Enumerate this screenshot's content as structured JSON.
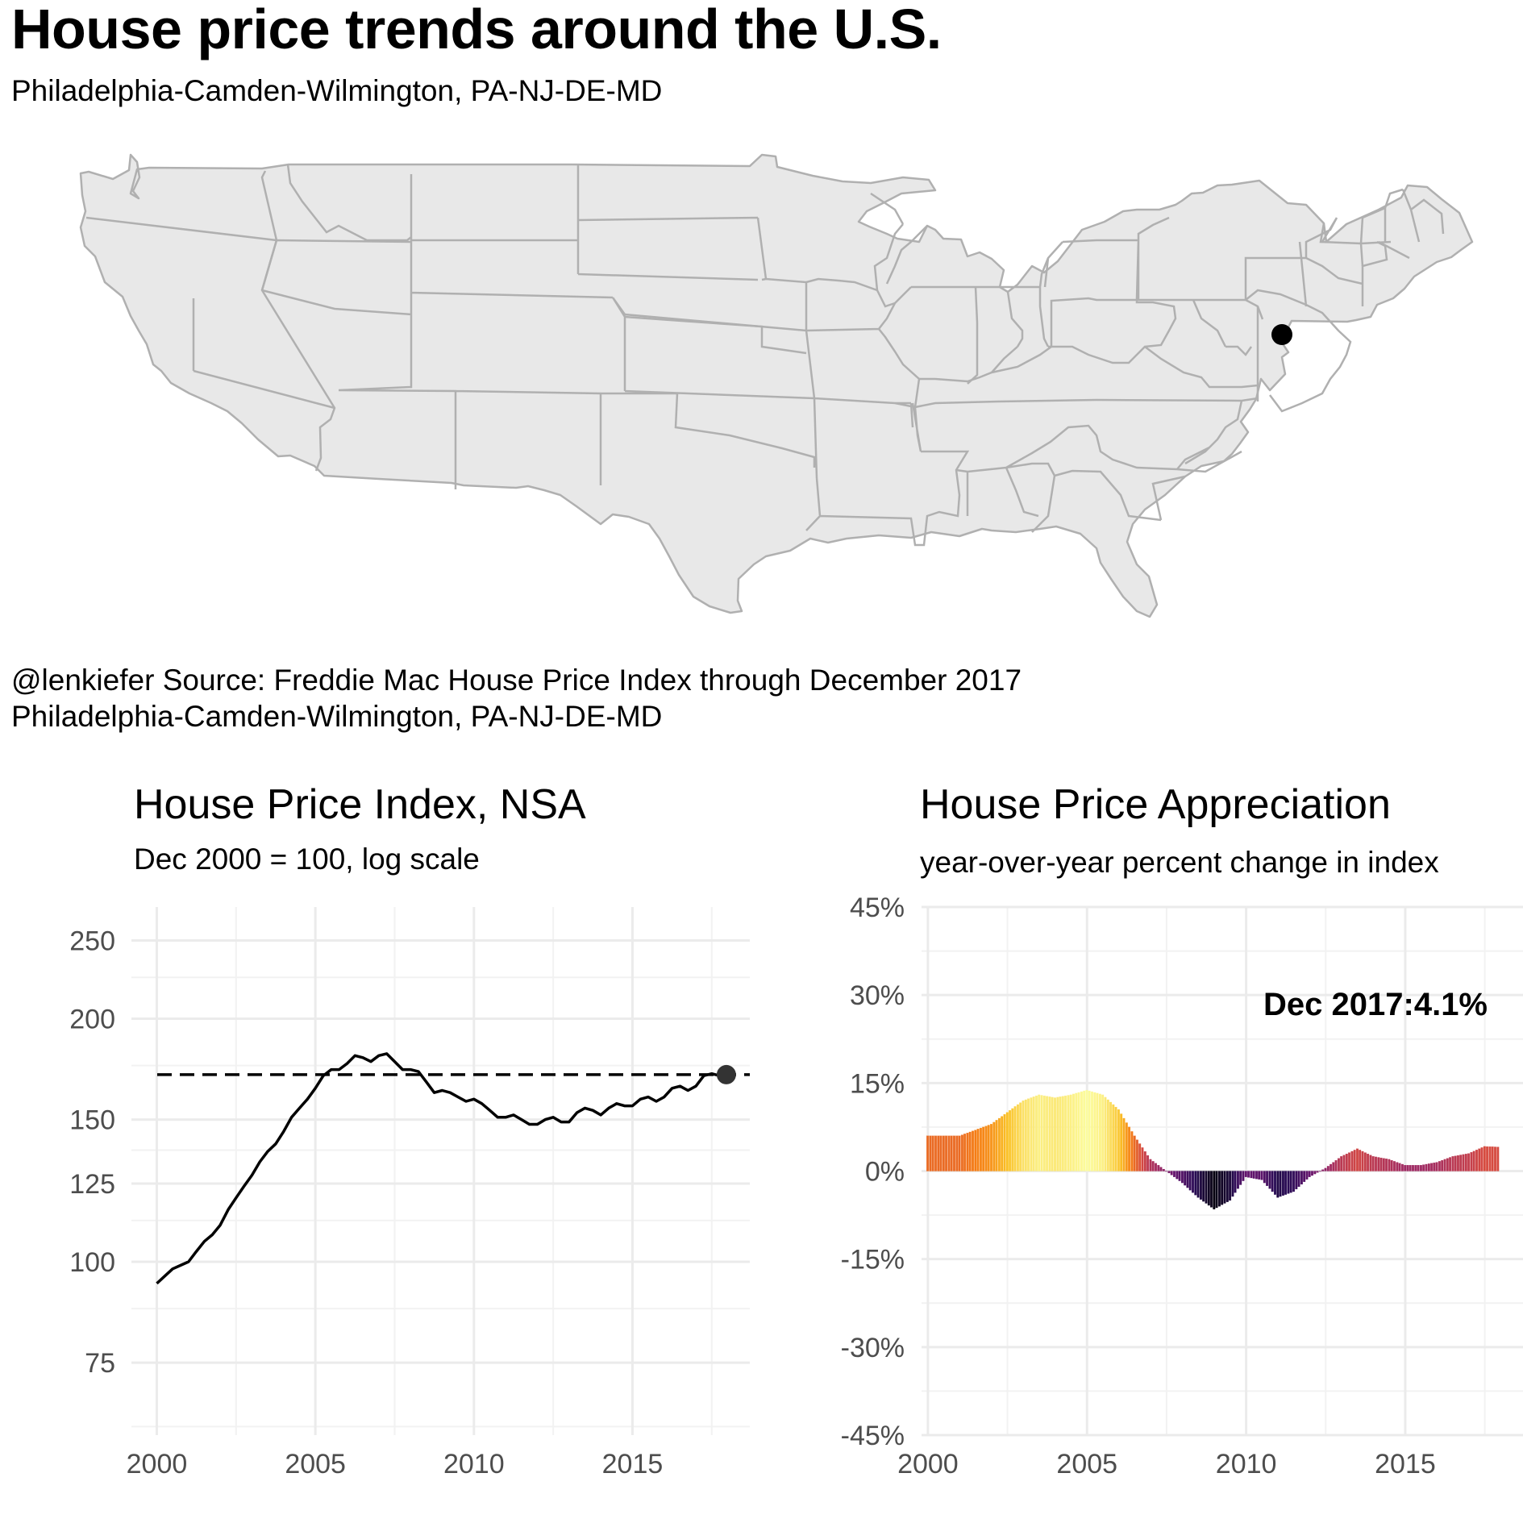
{
  "header": {
    "title": "House price trends around the U.S.",
    "subtitle": "Philadelphia-Camden-Wilmington, PA-NJ-DE-MD"
  },
  "map": {
    "marker_label": "Philadelphia-Camden-Wilmington, PA-NJ-DE-MD",
    "marker_lon": -75.2,
    "marker_lat": 39.95,
    "fill": "#e8e8e8",
    "stroke": "#b0b0b0",
    "marker_color": "#000000"
  },
  "caption": {
    "line1": "@lenkiefer Source: Freddie Mac House Price Index through December 2017",
    "line2": "Philadelphia-Camden-Wilmington, PA-NJ-DE-MD"
  },
  "chart_data": [
    {
      "type": "line",
      "title": "House Price Index, NSA",
      "subtitle": "Dec 2000 = 100, log scale",
      "scale": "log",
      "ylim": [
        61,
        275
      ],
      "xlim": [
        1999.2,
        2018.7
      ],
      "y_ticks": [
        75,
        100,
        125,
        150,
        200,
        250
      ],
      "y_minor": [
        62.5,
        87.5,
        112.5,
        137.5,
        175,
        225
      ],
      "x_ticks": [
        2000,
        2005,
        2010,
        2015
      ],
      "reference_value": 170.5,
      "end_point": {
        "x": 2017.96,
        "y": 170.5,
        "color": "#333333"
      },
      "series": [
        {
          "x": [
            2000.0,
            2000.25,
            2000.5,
            2000.75,
            2001.0,
            2001.25,
            2001.5,
            2001.75,
            2002.0,
            2002.25,
            2002.5,
            2002.75,
            2003.0,
            2003.25,
            2003.5,
            2003.75,
            2004.0,
            2004.25,
            2004.5,
            2004.75,
            2005.0,
            2005.25,
            2005.5,
            2005.75,
            2006.0,
            2006.25,
            2006.5,
            2006.75,
            2007.0,
            2007.25,
            2007.5,
            2007.75,
            2008.0,
            2008.25,
            2008.5,
            2008.75,
            2009.0,
            2009.25,
            2009.5,
            2009.75,
            2010.0,
            2010.25,
            2010.5,
            2010.75,
            2011.0,
            2011.25,
            2011.5,
            2011.75,
            2012.0,
            2012.25,
            2012.5,
            2012.75,
            2013.0,
            2013.25,
            2013.5,
            2013.75,
            2014.0,
            2014.25,
            2014.5,
            2014.75,
            2015.0,
            2015.25,
            2015.5,
            2015.75,
            2016.0,
            2016.25,
            2016.5,
            2016.75,
            2017.0,
            2017.25,
            2017.5,
            2017.75,
            2017.96
          ],
          "y": [
            94,
            96,
            98,
            99,
            100,
            103,
            106,
            108,
            111,
            116,
            120,
            124,
            128,
            133,
            137,
            140,
            145,
            151,
            155,
            159,
            164,
            170,
            173,
            173,
            176,
            180,
            179,
            177,
            180,
            181,
            177,
            173,
            173,
            172,
            167,
            162,
            163,
            162,
            160,
            158,
            159,
            157,
            154,
            151,
            151,
            152,
            150,
            148,
            148,
            150,
            151,
            149,
            149,
            153,
            155,
            154,
            152,
            155,
            157,
            156,
            156,
            159,
            160,
            158,
            160,
            164,
            165,
            163,
            165,
            170,
            171,
            170,
            170.5
          ]
        }
      ]
    },
    {
      "type": "bar",
      "title": "House Price Appreciation",
      "subtitle": "year-over-year percent change in index",
      "ylim": [
        -45,
        45
      ],
      "xlim": [
        1999.8,
        2018.7
      ],
      "y_ticks": [
        -45,
        -30,
        -15,
        0,
        15,
        30,
        45
      ],
      "y_tick_labels": [
        "-45%",
        "-30%",
        "-15%",
        "0%",
        "15%",
        "30%",
        "45%"
      ],
      "x_ticks": [
        2000,
        2005,
        2010,
        2015
      ],
      "annotation": "Dec 2017:4.1%",
      "color_scale": "inferno",
      "x": [
        2000,
        2000.5,
        2001,
        2001.5,
        2002,
        2002.5,
        2003,
        2003.5,
        2004,
        2004.5,
        2005,
        2005.5,
        2006,
        2006.5,
        2007,
        2007.5,
        2008,
        2008.5,
        2009,
        2009.5,
        2010,
        2010.5,
        2011,
        2011.5,
        2012,
        2012.5,
        2013,
        2013.5,
        2014,
        2014.5,
        2015,
        2015.5,
        2016,
        2016.5,
        2017,
        2017.5,
        2017.96
      ],
      "values": [
        6.0,
        6.0,
        6.0,
        7.0,
        8.0,
        10.0,
        12.0,
        13.0,
        12.5,
        13.0,
        13.8,
        13.0,
        10.5,
        6.0,
        2.0,
        0.0,
        -2.0,
        -4.5,
        -6.5,
        -5.0,
        -1.0,
        -1.5,
        -4.5,
        -3.5,
        -1.0,
        0.5,
        2.5,
        3.8,
        2.5,
        2.0,
        1.0,
        1.0,
        1.5,
        2.5,
        3.0,
        4.2,
        4.1
      ]
    }
  ]
}
